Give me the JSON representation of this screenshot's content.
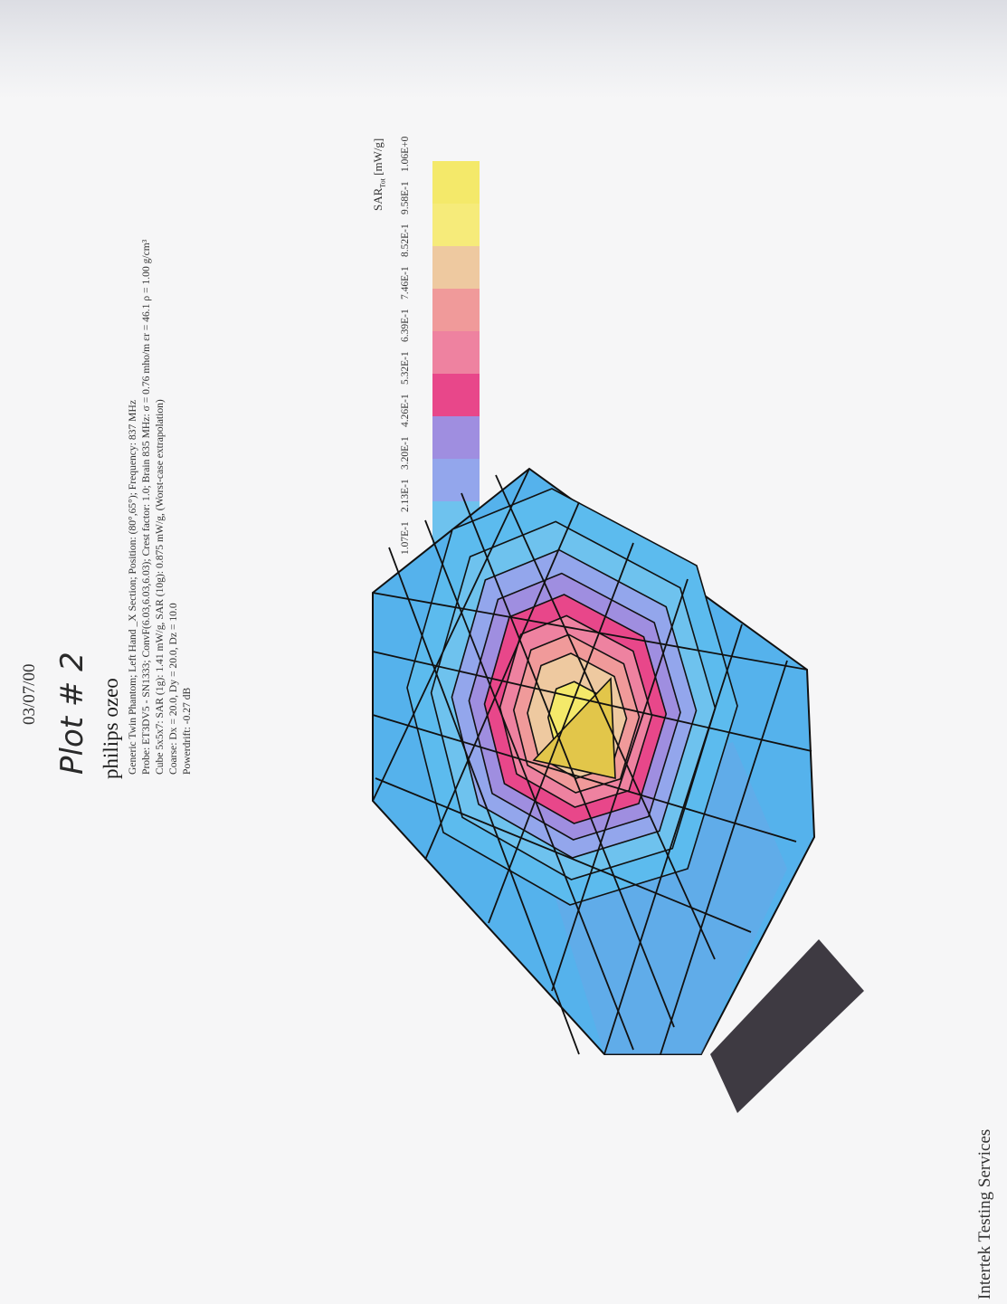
{
  "header": {
    "date": "03/07/00",
    "plot_number": "Plot # 2",
    "device": "philips ozeo"
  },
  "measurement_info": [
    "Generic Twin Phantom; Left Hand _X Section; Position: (80°,65°); Frequency: 837 MHz",
    "Probe: ET3DV5 - SN1333; ConvF(6.03,6.03,6.03); Crest factor: 1.0; Brain 835 MHz: σ = 0.76 mho/m εr = 46.1 ρ = 1.00 g/cm³",
    "Cube 5x5x7: SAR (1g): 1.41  mW/g, SAR (10g): 0.875  mW/g, (Worst-case extrapolation)",
    "Coarse: Dx = 20.0, Dy = 20.0, Dz = 10.0",
    "Powerdrift: -0.27 dB"
  ],
  "footer": "Intertek Testing Services",
  "chart_data": {
    "type": "heatmap",
    "title": "",
    "legend_title": "SAR",
    "legend_title_sub": "Tot",
    "legend_unit": "[mW/g]",
    "legend_placement": "top-right",
    "legend": [
      {
        "value": "1.06E+0",
        "color": "#f4e96a"
      },
      {
        "value": "9.58E-1",
        "color": "#f6eb7a"
      },
      {
        "value": "8.52E-1",
        "color": "#eec9a0"
      },
      {
        "value": "7.46E-1",
        "color": "#f09a9a"
      },
      {
        "value": "6.39E-1",
        "color": "#ee82a0"
      },
      {
        "value": "5.32E-1",
        "color": "#e8478a"
      },
      {
        "value": "4.26E-1",
        "color": "#9f8ee0"
      },
      {
        "value": "3.20E-1",
        "color": "#93a6ec"
      },
      {
        "value": "2.13E-1",
        "color": "#6ec2ee"
      },
      {
        "value": "1.07E-1",
        "color": "#5cbbee"
      },
      {
        "value": "",
        "color": "#55b2ec"
      }
    ]
  }
}
